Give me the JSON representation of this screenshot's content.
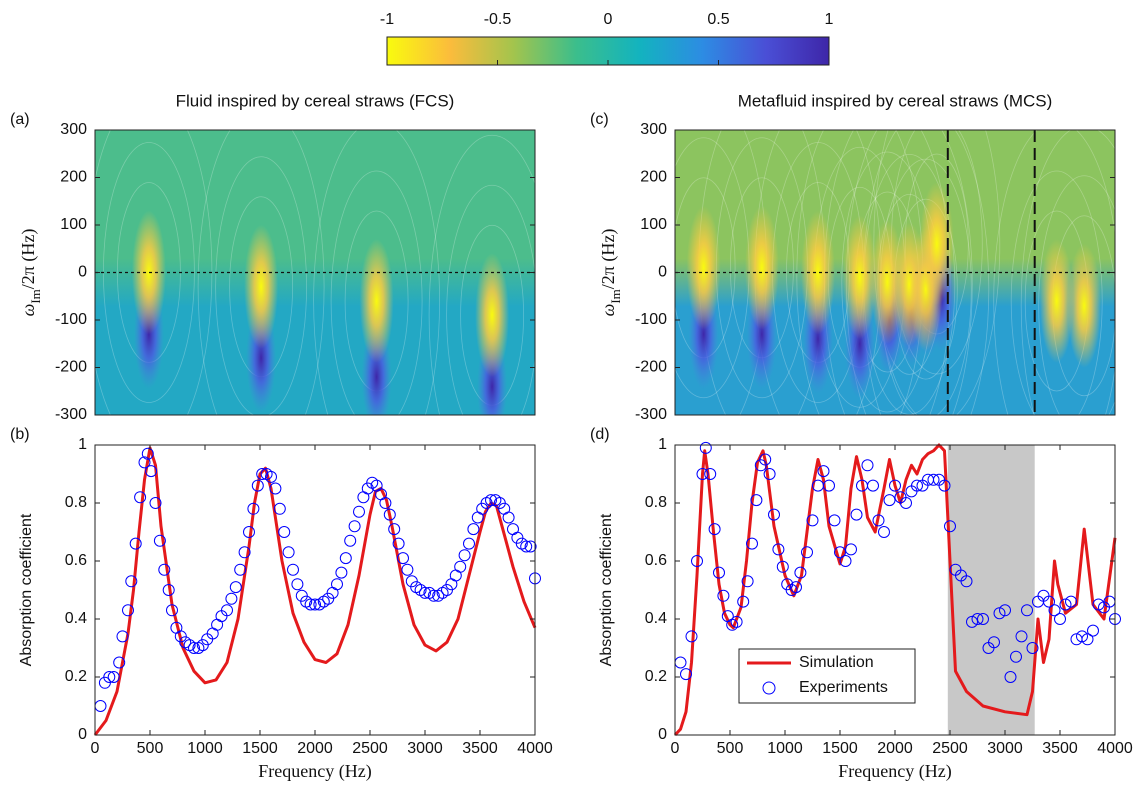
{
  "chart_data": [
    {
      "type": "colorbar",
      "lim": [
        -1,
        1
      ],
      "ticks": [
        -1,
        -0.5,
        0,
        0.5,
        1
      ],
      "colormap": [
        "#f9fb0e",
        "#fbbc3c",
        "#a3c44d",
        "#3bbe8c",
        "#13b3bf",
        "#2d8ce3",
        "#4a4fd6",
        "#3e26a8"
      ]
    },
    {
      "type": "heatmap",
      "panel": "(a)",
      "title": "Fluid inspired by cereal straws (FCS)",
      "ylabel": [
        "ω",
        "Im",
        "/2π (Hz)"
      ],
      "xlim": [
        0,
        4000
      ],
      "ylim": [
        -300,
        300
      ],
      "yticks": [
        -300,
        -200,
        -100,
        0,
        100,
        200,
        300
      ],
      "hline": 0,
      "colors": {
        "upper": "#4cbd8c",
        "lower": "#23a8c4"
      },
      "zeros": {
        "x": [
          490,
          1510,
          2560,
          3610
        ],
        "y": [
          0,
          -30,
          -60,
          -90
        ]
      },
      "poles": {
        "x": [
          490,
          1510,
          2560,
          3610
        ],
        "y": [
          -130,
          -180,
          -220,
          -240
        ]
      }
    },
    {
      "type": "line",
      "panel": "(b)",
      "xlabel": "Frequency (Hz)",
      "ylabel": "Absorption coefficient",
      "xlim": [
        0,
        4000
      ],
      "ylim": [
        0,
        1
      ],
      "xticks": [
        0,
        500,
        1000,
        1500,
        2000,
        2500,
        3000,
        3500,
        4000
      ],
      "yticks": [
        0,
        0.2,
        0.4,
        0.6,
        0.8,
        1
      ],
      "series": [
        {
          "style": "line",
          "color": "#e41a1c",
          "x": [
            0,
            100,
            200,
            300,
            350,
            400,
            450,
            500,
            550,
            600,
            700,
            800,
            900,
            1000,
            1100,
            1200,
            1300,
            1400,
            1450,
            1500,
            1550,
            1600,
            1700,
            1800,
            1900,
            2000,
            2100,
            2200,
            2300,
            2400,
            2500,
            2550,
            2600,
            2650,
            2700,
            2800,
            2900,
            3000,
            3100,
            3200,
            3300,
            3400,
            3500,
            3550,
            3600,
            3650,
            3700,
            3800,
            3900,
            4000
          ],
          "values": [
            0,
            0.05,
            0.15,
            0.35,
            0.5,
            0.7,
            0.88,
            0.99,
            0.93,
            0.72,
            0.45,
            0.3,
            0.22,
            0.18,
            0.19,
            0.25,
            0.4,
            0.65,
            0.8,
            0.9,
            0.92,
            0.85,
            0.6,
            0.42,
            0.32,
            0.26,
            0.25,
            0.28,
            0.38,
            0.55,
            0.76,
            0.84,
            0.85,
            0.81,
            0.72,
            0.52,
            0.38,
            0.31,
            0.29,
            0.32,
            0.4,
            0.55,
            0.7,
            0.77,
            0.8,
            0.79,
            0.72,
            0.58,
            0.46,
            0.37
          ]
        },
        {
          "style": "markers",
          "color": "#0000ff",
          "x": [
            50,
            90,
            130,
            170,
            220,
            250,
            300,
            330,
            370,
            410,
            450,
            480,
            510,
            550,
            590,
            630,
            670,
            700,
            740,
            780,
            820,
            860,
            900,
            940,
            980,
            1020,
            1070,
            1110,
            1150,
            1200,
            1240,
            1280,
            1320,
            1360,
            1400,
            1440,
            1480,
            1520,
            1560,
            1600,
            1640,
            1680,
            1720,
            1760,
            1800,
            1840,
            1880,
            1920,
            1960,
            2000,
            2040,
            2080,
            2120,
            2160,
            2200,
            2240,
            2280,
            2320,
            2360,
            2400,
            2440,
            2480,
            2520,
            2560,
            2600,
            2640,
            2680,
            2720,
            2760,
            2800,
            2840,
            2880,
            2920,
            2960,
            3000,
            3040,
            3080,
            3120,
            3160,
            3200,
            3240,
            3280,
            3320,
            3360,
            3400,
            3440,
            3480,
            3520,
            3560,
            3600,
            3640,
            3680,
            3720,
            3760,
            3800,
            3840,
            3880,
            3920,
            3960,
            4000
          ],
          "values": [
            0.1,
            0.18,
            0.2,
            0.2,
            0.25,
            0.34,
            0.43,
            0.53,
            0.66,
            0.82,
            0.94,
            0.97,
            0.91,
            0.8,
            0.67,
            0.57,
            0.5,
            0.43,
            0.37,
            0.34,
            0.32,
            0.31,
            0.3,
            0.3,
            0.31,
            0.33,
            0.35,
            0.38,
            0.41,
            0.43,
            0.47,
            0.51,
            0.57,
            0.63,
            0.7,
            0.78,
            0.86,
            0.9,
            0.9,
            0.89,
            0.85,
            0.78,
            0.7,
            0.63,
            0.57,
            0.52,
            0.48,
            0.46,
            0.45,
            0.45,
            0.45,
            0.46,
            0.47,
            0.49,
            0.52,
            0.56,
            0.61,
            0.67,
            0.72,
            0.77,
            0.82,
            0.85,
            0.87,
            0.86,
            0.83,
            0.8,
            0.76,
            0.71,
            0.66,
            0.61,
            0.57,
            0.53,
            0.51,
            0.5,
            0.49,
            0.49,
            0.48,
            0.48,
            0.49,
            0.5,
            0.52,
            0.55,
            0.58,
            0.62,
            0.66,
            0.71,
            0.75,
            0.78,
            0.8,
            0.81,
            0.81,
            0.8,
            0.78,
            0.75,
            0.71,
            0.68,
            0.66,
            0.65,
            0.65,
            0.54
          ]
        }
      ]
    },
    {
      "type": "heatmap",
      "panel": "(c)",
      "title": "Metafluid inspired by cereal straws (MCS)",
      "ylabel": [
        "ω",
        "Im",
        "/2π (Hz)"
      ],
      "xlim": [
        0,
        4000
      ],
      "ylim": [
        -300,
        300
      ],
      "yticks": [
        -300,
        -200,
        -100,
        0,
        100,
        200,
        300
      ],
      "hline": 0,
      "dashed_x": [
        2480,
        3270
      ],
      "colors": {
        "upper": "#8cc45f",
        "lower": "#2a9fd0"
      },
      "zeros": {
        "x": [
          260,
          790,
          1300,
          1680,
          1930,
          2130,
          2280,
          2380,
          3470,
          3720
        ],
        "y": [
          10,
          10,
          0,
          -10,
          -20,
          -25,
          -35,
          60,
          -60,
          -70
        ]
      },
      "poles": {
        "x": [
          260,
          790,
          1300,
          1680,
          1950,
          2150,
          2300,
          2420
        ],
        "y": [
          -130,
          -130,
          -140,
          -150,
          -100,
          -80,
          -60,
          -50
        ]
      }
    },
    {
      "type": "line",
      "panel": "(d)",
      "xlabel": "Frequency (Hz)",
      "ylabel": "Absorption coefficient",
      "xlim": [
        0,
        4000
      ],
      "ylim": [
        0,
        1
      ],
      "shaded": [
        2480,
        3270
      ],
      "legend": "lower center",
      "xticks": [
        0,
        500,
        1000,
        1500,
        2000,
        2500,
        3000,
        3500,
        4000
      ],
      "yticks": [
        0,
        0.2,
        0.4,
        0.6,
        0.8,
        1
      ],
      "series": [
        {
          "name": "Simulation",
          "style": "line",
          "color": "#e41a1c",
          "x": [
            0,
            50,
            100,
            150,
            200,
            250,
            270,
            300,
            350,
            400,
            450,
            500,
            530,
            600,
            650,
            700,
            750,
            800,
            830,
            900,
            1000,
            1080,
            1150,
            1200,
            1250,
            1300,
            1350,
            1400,
            1500,
            1550,
            1600,
            1650,
            1700,
            1750,
            1820,
            1900,
            1950,
            2000,
            2050,
            2100,
            2150,
            2200,
            2250,
            2300,
            2350,
            2400,
            2450,
            2500,
            2550,
            2650,
            2800,
            3000,
            3200,
            3250,
            3300,
            3350,
            3400,
            3450,
            3480,
            3550,
            3650,
            3720,
            3800,
            3900,
            4000
          ],
          "values": [
            0,
            0.02,
            0.08,
            0.25,
            0.55,
            0.9,
            0.98,
            0.9,
            0.7,
            0.52,
            0.42,
            0.38,
            0.37,
            0.44,
            0.6,
            0.8,
            0.94,
            0.98,
            0.93,
            0.72,
            0.55,
            0.48,
            0.55,
            0.7,
            0.85,
            0.95,
            0.88,
            0.72,
            0.59,
            0.65,
            0.85,
            0.96,
            0.88,
            0.75,
            0.7,
            0.85,
            0.95,
            0.86,
            0.8,
            0.88,
            0.93,
            0.9,
            0.95,
            0.97,
            0.98,
            1.0,
            0.98,
            0.6,
            0.22,
            0.15,
            0.1,
            0.08,
            0.07,
            0.15,
            0.4,
            0.25,
            0.33,
            0.6,
            0.52,
            0.42,
            0.45,
            0.71,
            0.45,
            0.4,
            0.68
          ]
        },
        {
          "name": "Experiments",
          "style": "markers",
          "color": "#0000ff",
          "x": [
            50,
            100,
            150,
            200,
            250,
            280,
            320,
            360,
            400,
            440,
            480,
            520,
            560,
            620,
            660,
            700,
            740,
            780,
            820,
            860,
            900,
            940,
            980,
            1020,
            1060,
            1100,
            1140,
            1200,
            1250,
            1300,
            1350,
            1400,
            1450,
            1500,
            1550,
            1600,
            1650,
            1700,
            1750,
            1800,
            1850,
            1900,
            1950,
            2000,
            2050,
            2100,
            2150,
            2200,
            2250,
            2300,
            2350,
            2400,
            2450,
            2500,
            2550,
            2600,
            2650,
            2700,
            2750,
            2800,
            2850,
            2900,
            2950,
            3000,
            3050,
            3100,
            3150,
            3200,
            3250,
            3300,
            3350,
            3400,
            3450,
            3500,
            3550,
            3600,
            3650,
            3700,
            3750,
            3800,
            3850,
            3900,
            3950,
            4000
          ],
          "values": [
            0.25,
            0.21,
            0.34,
            0.6,
            0.9,
            0.99,
            0.9,
            0.71,
            0.56,
            0.48,
            0.41,
            0.38,
            0.39,
            0.46,
            0.53,
            0.66,
            0.81,
            0.93,
            0.95,
            0.9,
            0.76,
            0.64,
            0.58,
            0.52,
            0.5,
            0.51,
            0.56,
            0.63,
            0.74,
            0.86,
            0.91,
            0.86,
            0.74,
            0.63,
            0.6,
            0.64,
            0.76,
            0.86,
            0.93,
            0.86,
            0.74,
            0.7,
            0.81,
            0.86,
            0.82,
            0.8,
            0.84,
            0.86,
            0.86,
            0.88,
            0.88,
            0.88,
            0.86,
            0.72,
            0.57,
            0.55,
            0.53,
            0.39,
            0.4,
            0.4,
            0.3,
            0.32,
            0.42,
            0.43,
            0.2,
            0.27,
            0.34,
            0.43,
            0.3,
            0.46,
            0.48,
            0.46,
            0.43,
            0.4,
            0.45,
            0.46,
            0.33,
            0.34,
            0.33,
            0.36,
            0.45,
            0.44,
            0.46,
            0.4
          ]
        }
      ]
    }
  ]
}
